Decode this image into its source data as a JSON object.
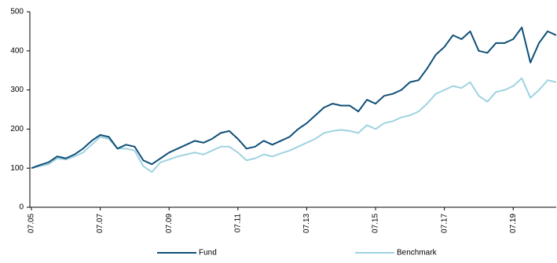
{
  "chart_data": {
    "type": "line",
    "categories": [
      "07.05",
      null,
      null,
      null,
      null,
      null,
      null,
      null,
      "07.07",
      null,
      null,
      null,
      null,
      null,
      null,
      null,
      "07.09",
      null,
      null,
      null,
      null,
      null,
      null,
      null,
      "07.11",
      null,
      null,
      null,
      null,
      null,
      null,
      null,
      "07.13",
      null,
      null,
      null,
      null,
      null,
      null,
      null,
      "07.15",
      null,
      null,
      null,
      null,
      null,
      null,
      null,
      "07.17",
      null,
      null,
      null,
      null,
      null,
      null,
      null,
      "07.19",
      null,
      null,
      null,
      null,
      null
    ],
    "series": [
      {
        "name": "Fund",
        "color": "#0f4f78",
        "values": [
          100,
          108,
          115,
          130,
          125,
          135,
          150,
          170,
          185,
          180,
          150,
          160,
          155,
          120,
          110,
          125,
          140,
          150,
          160,
          170,
          165,
          175,
          190,
          195,
          175,
          150,
          155,
          170,
          160,
          170,
          180,
          200,
          215,
          235,
          255,
          265,
          260,
          260,
          245,
          275,
          265,
          285,
          290,
          300,
          320,
          325,
          355,
          390,
          410,
          440,
          430,
          450,
          400,
          395,
          420,
          420,
          430,
          460,
          370,
          420,
          450,
          440
        ]
      },
      {
        "name": "Benchmark",
        "color": "#9fd3e0",
        "values": [
          100,
          105,
          110,
          125,
          122,
          130,
          140,
          160,
          180,
          175,
          150,
          150,
          145,
          105,
          90,
          115,
          122,
          130,
          135,
          140,
          135,
          145,
          155,
          155,
          140,
          120,
          125,
          135,
          130,
          138,
          145,
          155,
          165,
          175,
          190,
          195,
          198,
          195,
          190,
          210,
          200,
          215,
          220,
          230,
          235,
          245,
          265,
          290,
          300,
          310,
          305,
          320,
          285,
          270,
          295,
          300,
          310,
          330,
          280,
          300,
          325,
          320
        ]
      }
    ],
    "ylim": [
      0,
      500
    ],
    "yticks": [
      0,
      100,
      200,
      300,
      400,
      500
    ],
    "grid": false,
    "legend": "bottom"
  }
}
